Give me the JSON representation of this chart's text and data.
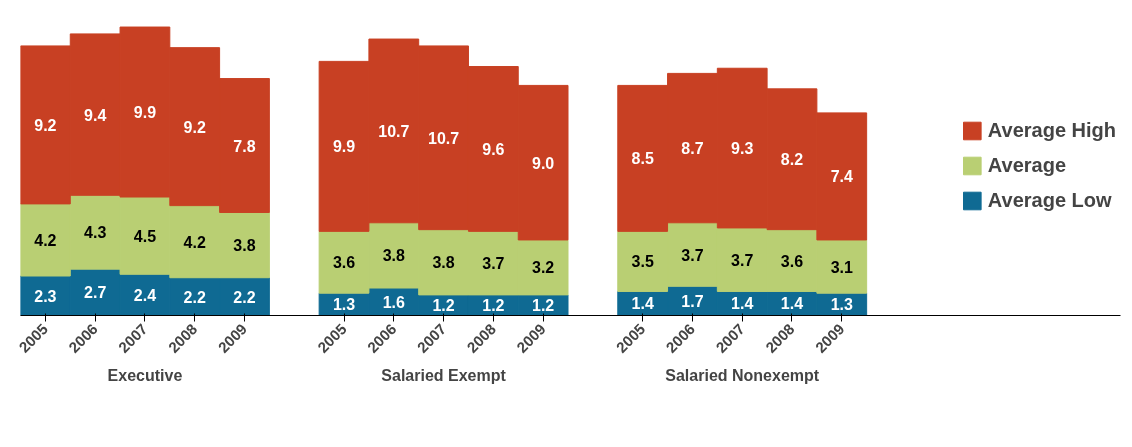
{
  "chart_data": {
    "type": "bar",
    "stacked": true,
    "data_labels": true,
    "legend": "right",
    "grid": false,
    "categories": [
      "2005",
      "2006",
      "2007",
      "2008",
      "2009",
      "2005",
      "2006",
      "2007",
      "2008",
      "2009",
      "2005",
      "2006",
      "2007",
      "2008",
      "2009"
    ],
    "series": [
      {
        "name": "Average Low",
        "color": "#0f6a93",
        "values": [
          2.3,
          2.7,
          2.4,
          2.2,
          2.2,
          1.3,
          1.6,
          1.2,
          1.2,
          1.2,
          1.4,
          1.7,
          1.4,
          1.4,
          1.3
        ]
      },
      {
        "name": "Average",
        "color": "#b9cf73",
        "values": [
          4.2,
          4.3,
          4.5,
          4.2,
          3.8,
          3.6,
          3.8,
          3.8,
          3.7,
          3.2,
          3.5,
          3.7,
          3.7,
          3.6,
          3.1
        ]
      },
      {
        "name": "Average High",
        "color": "#c84023",
        "values": [
          9.2,
          9.4,
          9.9,
          9.2,
          7.8,
          9.9,
          10.7,
          10.7,
          9.6,
          9.0,
          8.5,
          8.7,
          9.3,
          8.2,
          7.4
        ],
        "value_labels": [
          "9.2",
          "9.4",
          "9.9",
          "9.2",
          "7.8",
          "9.9",
          "10.7",
          "10.7",
          "9.6",
          "9.0",
          "8.5",
          "8.7",
          "9.3",
          "8.2",
          "7.4"
        ]
      }
    ],
    "annotations": [
      "Executive",
      "Salaried Exempt",
      "Salaried Nonexempt"
    ]
  }
}
